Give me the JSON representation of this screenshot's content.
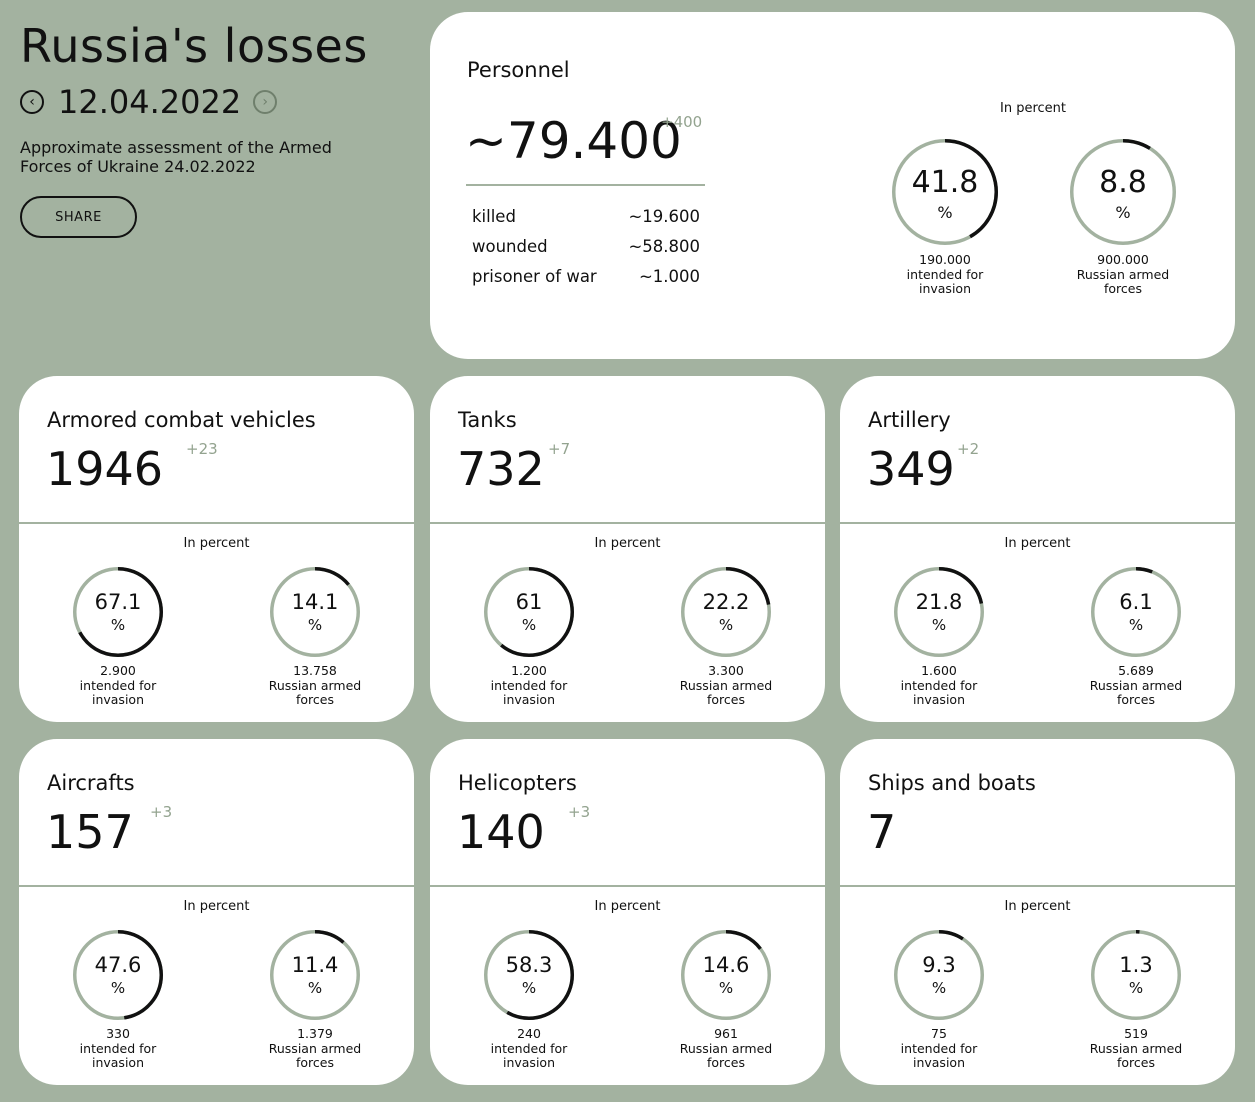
{
  "header": {
    "title": "Russia's losses",
    "date": "12.04.2022",
    "prev_icon": "chevron-left-icon",
    "next_icon": "chevron-right-icon",
    "subtitle": "Approximate assessment of the Armed Forces of Ukraine 24.02.2022",
    "share_label": "SHARE"
  },
  "colors": {
    "background": "#a3b2a0",
    "ring_track": "#a3b2a0",
    "ring_fill": "#111111",
    "delta": "#93a38f"
  },
  "personnel": {
    "title": "Personnel",
    "total": "~79.400",
    "delta": "+400",
    "breakdown": [
      {
        "label": "killed",
        "value": "~19.600"
      },
      {
        "label": "wounded",
        "value": "~58.800"
      },
      {
        "label": "prisoner of war",
        "value": "~1.000"
      }
    ],
    "in_percent_label": "In percent",
    "circles": [
      {
        "percent": 41.8,
        "label": "41.8",
        "symbol": "%",
        "base": "190.000",
        "caption": "intended for invasion"
      },
      {
        "percent": 8.8,
        "label": "8.8",
        "symbol": "%",
        "base": "900.000",
        "caption": "Russian armed forces"
      }
    ]
  },
  "equipment": [
    {
      "title": "Armored combat vehicles",
      "total": "1946",
      "delta": "+23",
      "in_percent_label": "In percent",
      "circles": [
        {
          "percent": 67.1,
          "label": "67.1",
          "symbol": "%",
          "base": "2.900",
          "caption": "intended for invasion"
        },
        {
          "percent": 14.1,
          "label": "14.1",
          "symbol": "%",
          "base": "13.758",
          "caption": "Russian armed forces"
        }
      ]
    },
    {
      "title": "Tanks",
      "total": "732",
      "delta": "+7",
      "in_percent_label": "In percent",
      "circles": [
        {
          "percent": 61,
          "label": "61",
          "symbol": "%",
          "base": "1.200",
          "caption": "intended for invasion"
        },
        {
          "percent": 22.2,
          "label": "22.2",
          "symbol": "%",
          "base": "3.300",
          "caption": "Russian armed forces"
        }
      ]
    },
    {
      "title": "Artillery",
      "total": "349",
      "delta": "+2",
      "in_percent_label": "In percent",
      "circles": [
        {
          "percent": 21.8,
          "label": "21.8",
          "symbol": "%",
          "base": "1.600",
          "caption": "intended for invasion"
        },
        {
          "percent": 6.1,
          "label": "6.1",
          "symbol": "%",
          "base": "5.689",
          "caption": "Russian armed forces"
        }
      ]
    },
    {
      "title": "Aircrafts",
      "total": "157",
      "delta": "+3",
      "in_percent_label": "In percent",
      "circles": [
        {
          "percent": 47.6,
          "label": "47.6",
          "symbol": "%",
          "base": "330",
          "caption": "intended for invasion"
        },
        {
          "percent": 11.4,
          "label": "11.4",
          "symbol": "%",
          "base": "1.379",
          "caption": "Russian armed forces"
        }
      ]
    },
    {
      "title": "Helicopters",
      "total": "140",
      "delta": "+3",
      "in_percent_label": "In percent",
      "circles": [
        {
          "percent": 58.3,
          "label": "58.3",
          "symbol": "%",
          "base": "240",
          "caption": "intended for invasion"
        },
        {
          "percent": 14.6,
          "label": "14.6",
          "symbol": "%",
          "base": "961",
          "caption": "Russian armed forces"
        }
      ]
    },
    {
      "title": "Ships and boats",
      "total": "7",
      "delta": "",
      "in_percent_label": "In percent",
      "circles": [
        {
          "percent": 9.3,
          "label": "9.3",
          "symbol": "%",
          "base": "75",
          "caption": "intended for invasion"
        },
        {
          "percent": 1.3,
          "label": "1.3",
          "symbol": "%",
          "base": "519",
          "caption": "Russian armed forces"
        }
      ]
    }
  ]
}
